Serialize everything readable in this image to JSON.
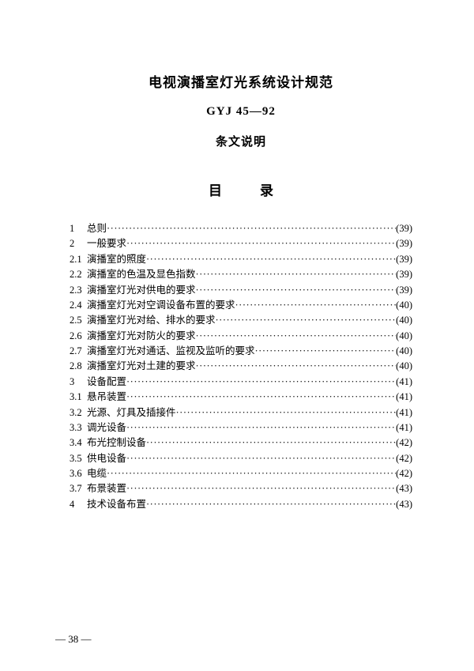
{
  "header": {
    "title": "电视演播室灯光系统设计规范",
    "code": "GYJ 45—92",
    "subtitle": "条文说明",
    "toc_title": "目录"
  },
  "toc": [
    {
      "num": "1",
      "label": "总则",
      "page": "(39)"
    },
    {
      "num": "2",
      "label": "一般要求",
      "page": "(39)"
    },
    {
      "num": "2.1",
      "label": "演播室的照度",
      "page": "(39)"
    },
    {
      "num": "2.2",
      "label": "演播室的色温及显色指数",
      "page": "(39)"
    },
    {
      "num": "2.3",
      "label": "演播室灯光对供电的要求",
      "page": "(39)"
    },
    {
      "num": "2.4",
      "label": "演播室灯光对空调设备布置的要求",
      "page": "(40)"
    },
    {
      "num": "2.5",
      "label": "演播室灯光对给、排水的要求",
      "page": "(40)"
    },
    {
      "num": "2.6",
      "label": "演播室灯光对防火的要求",
      "page": "(40)"
    },
    {
      "num": "2.7",
      "label": "演播室灯光对通话、监视及监听的要求",
      "page": "(40)"
    },
    {
      "num": "2.8",
      "label": "演播室灯光对土建的要求",
      "page": "(40)"
    },
    {
      "num": "3",
      "label": "设备配置",
      "page": "(41)"
    },
    {
      "num": "3.1",
      "label": "悬吊装置",
      "page": "(41)"
    },
    {
      "num": "3.2",
      "label": "光源、灯具及插接件",
      "page": "(41)"
    },
    {
      "num": "3.3",
      "label": "调光设备",
      "page": "(41)"
    },
    {
      "num": "3.4",
      "label": "布光控制设备",
      "page": "(42)"
    },
    {
      "num": "3.5",
      "label": "供电设备",
      "page": "(42)"
    },
    {
      "num": "3.6",
      "label": "电缆",
      "page": "(42)"
    },
    {
      "num": "3.7",
      "label": "布景装置",
      "page": "(43)"
    },
    {
      "num": "4",
      "label": "技术设备布置",
      "page": "(43)"
    }
  ],
  "footer": "— 38 —"
}
